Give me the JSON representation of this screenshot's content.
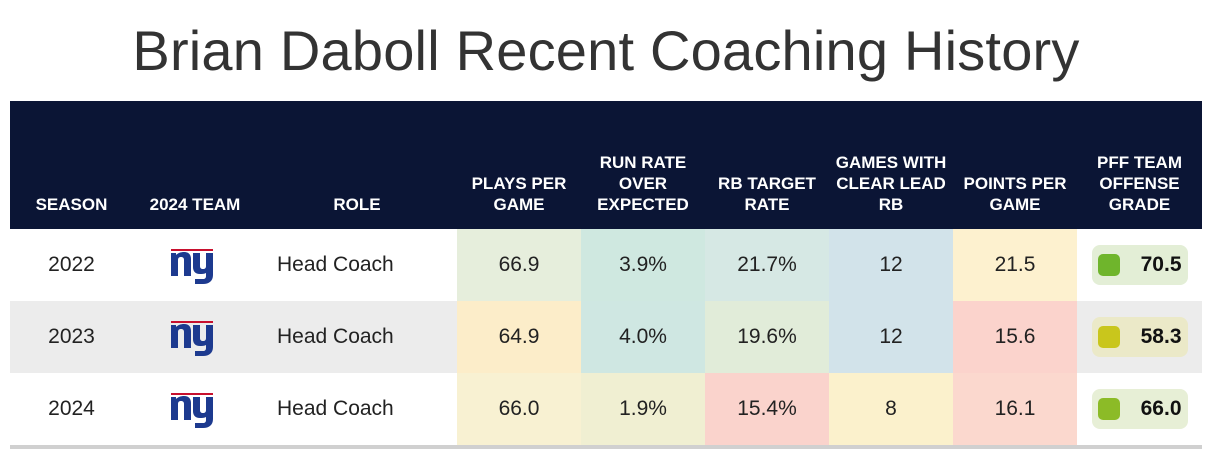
{
  "title": "Brian Daboll Recent Coaching History",
  "headers": {
    "season": "SEASON",
    "team": "2024 TEAM",
    "role": "ROLE",
    "plays": "PLAYS PER GAME",
    "run_rate": "RUN RATE OVER EXPECTED",
    "rb_target": "RB TARGET RATE",
    "games_lead_rb": "GAMES WITH CLEAR LEAD RB",
    "points": "POINTS PER GAME",
    "pff_grade": "PFF TEAM OFFENSE GRADE"
  },
  "logo_icon": "ny-giants-logo",
  "chart_data": {
    "type": "table",
    "title": "Brian Daboll Recent Coaching History",
    "columns": [
      "SEASON",
      "2024 TEAM",
      "ROLE",
      "PLAYS PER GAME",
      "RUN RATE OVER EXPECTED",
      "RB TARGET RATE",
      "GAMES WITH CLEAR LEAD RB",
      "POINTS PER GAME",
      "PFF TEAM OFFENSE GRADE"
    ],
    "rows": [
      {
        "season": "2022",
        "team": "ny",
        "role": "Head Coach",
        "plays": "66.9",
        "run_rate": "3.9%",
        "rb_target": "21.7%",
        "games_lead_rb": "12",
        "points": "21.5",
        "pff_grade": "70.5"
      },
      {
        "season": "2023",
        "team": "ny",
        "role": "Head Coach",
        "plays": "64.9",
        "run_rate": "4.0%",
        "rb_target": "19.6%",
        "games_lead_rb": "12",
        "points": "15.6",
        "pff_grade": "58.3"
      },
      {
        "season": "2024",
        "team": "ny",
        "role": "Head Coach",
        "plays": "66.0",
        "run_rate": "1.9%",
        "rb_target": "15.4%",
        "games_lead_rb": "8",
        "points": "16.1",
        "pff_grade": "66.0"
      }
    ]
  },
  "cell_colors": [
    {
      "plays": "#e6eedc",
      "run_rate": "#cfe8e0",
      "rb_target": "#d6e8e4",
      "games_lead_rb": "#d2e3ea",
      "points": "#fdf1cf",
      "grade_bg": "#e3eed6",
      "grade_box": "#6fb52c"
    },
    {
      "plays": "#fcedc9",
      "run_rate": "#cfe7e2",
      "rb_target": "#e1ecd9",
      "games_lead_rb": "#d2e3ea",
      "points": "#fbd3cc",
      "grade_bg": "#ebe9c8",
      "grade_box": "#c9c61c"
    },
    {
      "plays": "#f8f1d2",
      "run_rate": "#f0efd2",
      "rb_target": "#fad3cc",
      "games_lead_rb": "#fbf1cc",
      "points": "#fbd8ce",
      "grade_bg": "#e7efd6",
      "grade_box": "#8cbb27"
    }
  ]
}
